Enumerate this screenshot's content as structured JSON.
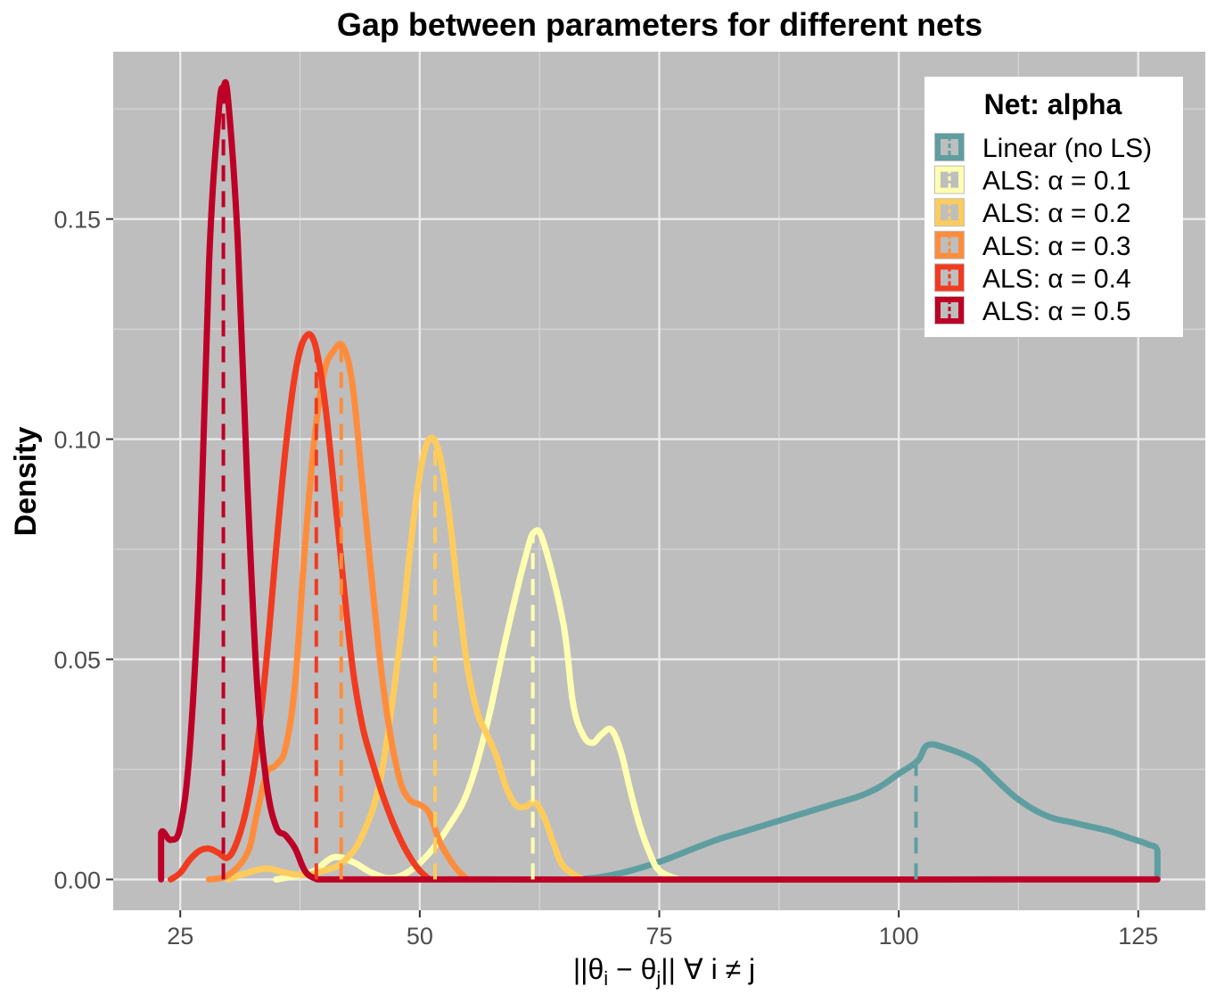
{
  "chart_data": {
    "type": "line",
    "title": "Gap between parameters for different nets",
    "xlabel": "||θi − θj|| ∀ i ≠ j",
    "xlabel_parts": {
      "pre": "||θ",
      "sub_i": "i",
      "mid": " − θ",
      "sub_j": "j",
      "post": "|| ∀ i ≠ j"
    },
    "ylabel": "Density",
    "xlim": [
      18,
      132
    ],
    "ylim": [
      -0.007,
      0.188
    ],
    "x_ticks": [
      25,
      50,
      75,
      100,
      125
    ],
    "x_tick_labels": [
      "25",
      "50",
      "75",
      "100",
      "125"
    ],
    "y_ticks": [
      0.0,
      0.05,
      0.1,
      0.15
    ],
    "y_tick_labels": [
      "0.00",
      "0.05",
      "0.10",
      "0.15"
    ],
    "grid": true,
    "background": "#bebebe",
    "legend": {
      "title": "Net: alpha",
      "position": "top-right"
    },
    "series": [
      {
        "name": "Linear (no LS)",
        "color": "#5f9ea0",
        "median": 101.8,
        "points": [
          [
            66,
            0
          ],
          [
            68,
            0.0003
          ],
          [
            70,
            0.001
          ],
          [
            72,
            0.002
          ],
          [
            75,
            0.004
          ],
          [
            78,
            0.0065
          ],
          [
            81,
            0.009
          ],
          [
            84,
            0.011
          ],
          [
            87,
            0.013
          ],
          [
            90,
            0.015
          ],
          [
            93,
            0.017
          ],
          [
            96,
            0.019
          ],
          [
            98,
            0.021
          ],
          [
            100,
            0.024
          ],
          [
            102,
            0.027
          ],
          [
            103,
            0.0305
          ],
          [
            105,
            0.0298
          ],
          [
            108,
            0.027
          ],
          [
            110,
            0.023
          ],
          [
            112,
            0.019
          ],
          [
            114,
            0.016
          ],
          [
            116,
            0.014
          ],
          [
            118,
            0.013
          ],
          [
            120,
            0.012
          ],
          [
            122,
            0.011
          ],
          [
            124,
            0.0095
          ],
          [
            126,
            0.008
          ],
          [
            127,
            0.0065
          ],
          [
            127,
            0
          ]
        ]
      },
      {
        "name": "ALS: α = 0.1",
        "color": "#ffffb2",
        "median": 61.8,
        "points": [
          [
            35,
            0
          ],
          [
            37,
            0.0008
          ],
          [
            39,
            0.002
          ],
          [
            41,
            0.005
          ],
          [
            43,
            0.004
          ],
          [
            45,
            0.0015
          ],
          [
            47,
            0.0003
          ],
          [
            49,
            0.002
          ],
          [
            51,
            0.006
          ],
          [
            53,
            0.012
          ],
          [
            55,
            0.02
          ],
          [
            57,
            0.035
          ],
          [
            59,
            0.055
          ],
          [
            61,
            0.073
          ],
          [
            62,
            0.079
          ],
          [
            63,
            0.076
          ],
          [
            65,
            0.058
          ],
          [
            66,
            0.04
          ],
          [
            67,
            0.033
          ],
          [
            68,
            0.031
          ],
          [
            69,
            0.033
          ],
          [
            70,
            0.034
          ],
          [
            71,
            0.029
          ],
          [
            72,
            0.02
          ],
          [
            73,
            0.012
          ],
          [
            74,
            0.006
          ],
          [
            75,
            0.002
          ],
          [
            77,
            0
          ]
        ]
      },
      {
        "name": "ALS: α = 0.2",
        "color": "#fecc5c",
        "median": 51.6,
        "points": [
          [
            30,
            0
          ],
          [
            32,
            0.0015
          ],
          [
            34,
            0.0025
          ],
          [
            36,
            0.0015
          ],
          [
            38,
            0.001
          ],
          [
            40,
            0.002
          ],
          [
            42,
            0.004
          ],
          [
            44,
            0.01
          ],
          [
            46,
            0.024
          ],
          [
            48,
            0.055
          ],
          [
            49,
            0.075
          ],
          [
            50,
            0.092
          ],
          [
            51,
            0.1
          ],
          [
            52,
            0.097
          ],
          [
            53,
            0.084
          ],
          [
            54,
            0.065
          ],
          [
            55,
            0.048
          ],
          [
            56,
            0.038
          ],
          [
            57,
            0.033
          ],
          [
            58,
            0.028
          ],
          [
            59,
            0.021
          ],
          [
            60,
            0.017
          ],
          [
            61,
            0.0165
          ],
          [
            62,
            0.0175
          ],
          [
            63,
            0.014
          ],
          [
            64,
            0.008
          ],
          [
            65,
            0.003
          ],
          [
            67,
            0
          ]
        ]
      },
      {
        "name": "ALS: α = 0.3",
        "color": "#fd8d3c",
        "median": 41.8,
        "points": [
          [
            28,
            0
          ],
          [
            30,
            0.001
          ],
          [
            32,
            0.006
          ],
          [
            33,
            0.015
          ],
          [
            34,
            0.024
          ],
          [
            35,
            0.026
          ],
          [
            36,
            0.03
          ],
          [
            37,
            0.045
          ],
          [
            38,
            0.075
          ],
          [
            39,
            0.1
          ],
          [
            40,
            0.115
          ],
          [
            41,
            0.12
          ],
          [
            42,
            0.121
          ],
          [
            43,
            0.112
          ],
          [
            44,
            0.09
          ],
          [
            45,
            0.068
          ],
          [
            46,
            0.047
          ],
          [
            47,
            0.032
          ],
          [
            48,
            0.022
          ],
          [
            49,
            0.018
          ],
          [
            50,
            0.017
          ],
          [
            51,
            0.015
          ],
          [
            52,
            0.009
          ],
          [
            53,
            0.005
          ],
          [
            54,
            0.002
          ],
          [
            55,
            0
          ]
        ]
      },
      {
        "name": "ALS: α = 0.4",
        "color": "#f03b20",
        "median": 39.2,
        "points": [
          [
            24,
            0
          ],
          [
            25,
            0.0015
          ],
          [
            26,
            0.0045
          ],
          [
            27,
            0.0065
          ],
          [
            28,
            0.007
          ],
          [
            29,
            0.006
          ],
          [
            30,
            0.005
          ],
          [
            31,
            0.009
          ],
          [
            32,
            0.017
          ],
          [
            33,
            0.03
          ],
          [
            34,
            0.05
          ],
          [
            35,
            0.075
          ],
          [
            36,
            0.098
          ],
          [
            37,
            0.115
          ],
          [
            38,
            0.123
          ],
          [
            39,
            0.122
          ],
          [
            40,
            0.11
          ],
          [
            41,
            0.09
          ],
          [
            42,
            0.068
          ],
          [
            43,
            0.048
          ],
          [
            44,
            0.035
          ],
          [
            45,
            0.027
          ],
          [
            46,
            0.02
          ],
          [
            47,
            0.014
          ],
          [
            48,
            0.009
          ],
          [
            49,
            0.005
          ],
          [
            50,
            0.002
          ],
          [
            51,
            0
          ]
        ]
      },
      {
        "name": "ALS: α = 0.5",
        "color": "#bd0026",
        "median": 29.5,
        "points": [
          [
            23,
            0
          ],
          [
            23,
            0.0105
          ],
          [
            24,
            0.009
          ],
          [
            25,
            0.012
          ],
          [
            26,
            0.03
          ],
          [
            27,
            0.07
          ],
          [
            28,
            0.14
          ],
          [
            29,
            0.174
          ],
          [
            29.5,
            0.18
          ],
          [
            30,
            0.177
          ],
          [
            31,
            0.145
          ],
          [
            32,
            0.09
          ],
          [
            33,
            0.045
          ],
          [
            34,
            0.022
          ],
          [
            35,
            0.012
          ],
          [
            36,
            0.01
          ],
          [
            37,
            0.007
          ],
          [
            38,
            0.002
          ],
          [
            39,
            0.0003
          ],
          [
            40,
            0
          ],
          [
            127,
            0
          ]
        ]
      }
    ]
  }
}
